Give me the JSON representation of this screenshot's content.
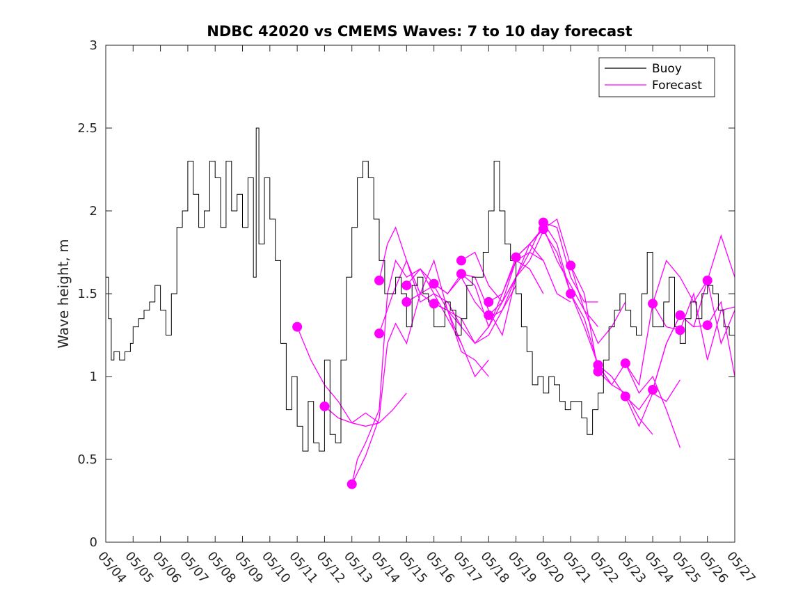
{
  "chart_data": {
    "type": "line",
    "title": "NDBC 42020 vs CMEMS Waves: 7 to 10 day forecast",
    "xlabel": "",
    "ylabel": "Wave height, m",
    "ylim": [
      0,
      3
    ],
    "xlim": [
      0,
      23
    ],
    "yticks": [
      "0",
      "0.5",
      "1",
      "1.5",
      "2",
      "2.5",
      "3"
    ],
    "xticks": [
      "05/04",
      "05/05",
      "05/06",
      "05/07",
      "05/08",
      "05/09",
      "05/10",
      "05/11",
      "05/12",
      "05/13",
      "05/14",
      "05/15",
      "05/16",
      "05/17",
      "05/18",
      "05/19",
      "05/20",
      "05/21",
      "05/22",
      "05/23",
      "05/24",
      "05/25",
      "05/26",
      "05/27"
    ],
    "grid": false,
    "legend": "top-right",
    "colors": {
      "buoy": "#000000",
      "forecast": "#ff00ff"
    },
    "series": [
      {
        "name": "Buoy",
        "x": [
          0,
          0.1,
          0.2,
          0.3,
          0.5,
          0.7,
          0.9,
          1.0,
          1.2,
          1.4,
          1.6,
          1.8,
          2.0,
          2.2,
          2.4,
          2.6,
          2.8,
          3.0,
          3.2,
          3.4,
          3.6,
          3.8,
          4.0,
          4.2,
          4.4,
          4.6,
          4.8,
          5.0,
          5.2,
          5.4,
          5.5,
          5.6,
          5.8,
          6.0,
          6.2,
          6.4,
          6.6,
          6.8,
          7.0,
          7.2,
          7.4,
          7.6,
          7.8,
          8.0,
          8.2,
          8.4,
          8.6,
          8.8,
          9.0,
          9.2,
          9.4,
          9.6,
          9.8,
          10.0,
          10.2,
          10.4,
          10.6,
          10.8,
          11.0,
          11.2,
          11.4,
          11.6,
          11.8,
          12.0,
          12.2,
          12.4,
          12.6,
          12.8,
          13.0,
          13.2,
          13.4,
          13.6,
          13.8,
          14.0,
          14.2,
          14.4,
          14.6,
          14.8,
          15.0,
          15.2,
          15.4,
          15.6,
          15.8,
          16.0,
          16.2,
          16.4,
          16.6,
          16.8,
          17.0,
          17.2,
          17.4,
          17.6,
          17.8,
          18.0,
          18.2,
          18.4,
          18.6,
          18.8,
          19.0,
          19.2,
          19.4,
          19.6,
          19.8,
          20.0,
          20.2,
          20.4,
          20.6,
          20.8,
          21.0,
          21.2,
          21.4,
          21.6,
          21.8,
          22.0,
          22.2,
          22.4,
          22.6,
          22.8,
          23.0
        ],
        "values": [
          1.6,
          1.35,
          1.1,
          1.15,
          1.1,
          1.15,
          1.2,
          1.3,
          1.35,
          1.4,
          1.45,
          1.55,
          1.4,
          1.25,
          1.5,
          1.9,
          2.0,
          2.3,
          2.1,
          1.9,
          2.0,
          2.3,
          2.2,
          1.9,
          2.3,
          2.0,
          2.1,
          1.9,
          2.2,
          1.6,
          2.5,
          1.8,
          2.2,
          1.95,
          1.7,
          1.2,
          0.8,
          1.0,
          0.7,
          0.55,
          0.85,
          0.6,
          0.55,
          1.1,
          0.65,
          0.6,
          1.1,
          1.6,
          1.9,
          2.2,
          2.3,
          2.2,
          1.95,
          1.7,
          1.5,
          1.5,
          1.6,
          1.5,
          1.3,
          1.55,
          1.6,
          1.5,
          1.45,
          1.3,
          1.3,
          1.45,
          1.4,
          1.25,
          1.35,
          1.55,
          1.6,
          1.6,
          1.75,
          2.0,
          2.3,
          2.0,
          1.8,
          1.7,
          1.5,
          1.3,
          1.15,
          0.95,
          1.0,
          0.9,
          1.0,
          0.95,
          0.85,
          0.8,
          0.85,
          0.85,
          0.75,
          0.65,
          0.8,
          0.9,
          1.1,
          1.3,
          1.4,
          1.5,
          1.4,
          1.3,
          1.25,
          1.5,
          1.75,
          1.3,
          1.3,
          1.45,
          1.6,
          1.3,
          1.2,
          1.35,
          1.45,
          1.35,
          1.5,
          1.55,
          1.5,
          1.4,
          1.3,
          1.25,
          1.25
        ]
      },
      {
        "name": "Forecast",
        "segments": [
          {
            "x": [
              7.0,
              7.5,
              8.0,
              8.5,
              9.0,
              9.5,
              10.0
            ],
            "values": [
              1.3,
              1.1,
              0.95,
              0.85,
              0.72,
              0.78,
              0.72
            ]
          },
          {
            "x": [
              8.0,
              8.5,
              9.0,
              9.5,
              10.0,
              10.5,
              11.0
            ],
            "values": [
              0.82,
              0.75,
              0.72,
              0.7,
              0.72,
              0.8,
              0.9
            ]
          },
          {
            "x": [
              9.0,
              9.2,
              9.5,
              10.0,
              10.3,
              10.6,
              11.0,
              11.5,
              12.0,
              12.5,
              13.0
            ],
            "values": [
              0.35,
              0.5,
              0.6,
              0.8,
              1.5,
              1.7,
              1.6,
              1.65,
              1.5,
              1.45,
              1.3
            ]
          },
          {
            "x": [
              9.0,
              9.5,
              10.0,
              10.3,
              10.6,
              11.0,
              11.5,
              12.0,
              12.5,
              13.0
            ],
            "values": [
              0.35,
              0.52,
              0.75,
              1.2,
              1.32,
              1.2,
              1.5,
              1.55,
              1.4,
              1.2
            ]
          },
          {
            "x": [
              10.0,
              10.3,
              10.6,
              11.0,
              11.5,
              12.0,
              12.5,
              13.0,
              13.5,
              14.0
            ],
            "values": [
              1.58,
              1.8,
              1.9,
              1.7,
              1.5,
              1.7,
              1.4,
              1.15,
              1.1,
              1.0
            ]
          },
          {
            "x": [
              10.0,
              10.5,
              11.0,
              11.5,
              12.0,
              12.5,
              13.0,
              13.5,
              14.0
            ],
            "values": [
              1.26,
              1.5,
              1.7,
              1.45,
              1.5,
              1.35,
              1.2,
              1.0,
              1.1
            ]
          },
          {
            "x": [
              11.0,
              11.5,
              12.0,
              12.5,
              13.0,
              13.5,
              14.0,
              14.5,
              15.0
            ],
            "values": [
              1.55,
              1.65,
              1.56,
              1.5,
              1.6,
              1.45,
              1.35,
              1.4,
              1.6
            ]
          },
          {
            "x": [
              11.0,
              11.5,
              12.0,
              12.5,
              13.0,
              13.5,
              14.0,
              14.5,
              15.0
            ],
            "values": [
              1.45,
              1.5,
              1.44,
              1.4,
              1.3,
              1.2,
              1.25,
              1.4,
              1.55
            ]
          },
          {
            "x": [
              12.0,
              12.5,
              13.0,
              13.5,
              14.0,
              14.5,
              15.0,
              15.5,
              16.0
            ],
            "values": [
              1.56,
              1.5,
              1.62,
              1.6,
              1.4,
              1.25,
              1.6,
              1.8,
              1.7
            ]
          },
          {
            "x": [
              12.0,
              12.5,
              13.0,
              13.5,
              14.0,
              14.5,
              15.0,
              15.5,
              16.0
            ],
            "values": [
              1.44,
              1.4,
              1.35,
              1.2,
              1.3,
              1.5,
              1.7,
              1.65,
              1.5
            ]
          },
          {
            "x": [
              13.0,
              13.5,
              14.0,
              14.5,
              15.0,
              15.5,
              16.0,
              16.5,
              17.0
            ],
            "values": [
              1.7,
              1.75,
              1.55,
              1.45,
              1.7,
              1.75,
              1.7,
              1.5,
              1.45
            ]
          },
          {
            "x": [
              13.0,
              13.5,
              14.0,
              14.5,
              15.0,
              15.5,
              16.0,
              16.5,
              17.0
            ],
            "values": [
              1.62,
              1.55,
              1.3,
              1.45,
              1.6,
              1.7,
              1.88,
              1.75,
              1.5
            ]
          },
          {
            "x": [
              14.0,
              14.5,
              15.0,
              15.5,
              16.0,
              16.5,
              17.0,
              17.5,
              18.0
            ],
            "values": [
              1.45,
              1.5,
              1.72,
              1.8,
              1.9,
              1.7,
              1.55,
              1.4,
              1.3
            ]
          },
          {
            "x": [
              14.0,
              14.5,
              15.0,
              15.5,
              16.0,
              16.5,
              17.0,
              17.5,
              18.0
            ],
            "values": [
              1.37,
              1.45,
              1.6,
              1.75,
              1.93,
              1.9,
              1.6,
              1.45,
              1.45
            ]
          },
          {
            "x": [
              15.0,
              15.5,
              16.0,
              16.5,
              17.0,
              17.5,
              18.0,
              18.5,
              19.0
            ],
            "values": [
              1.72,
              1.8,
              1.89,
              1.95,
              1.67,
              1.4,
              1.2,
              1.3,
              1.45
            ]
          },
          {
            "x": [
              16.0,
              16.5,
              17.0,
              17.5,
              18.0,
              18.5,
              19.0,
              19.5,
              20.0
            ],
            "values": [
              1.93,
              1.8,
              1.5,
              1.3,
              1.07,
              0.95,
              0.9,
              0.75,
              0.65
            ]
          },
          {
            "x": [
              17.0,
              17.5,
              18.0,
              18.5,
              19.0,
              19.5,
              20.0,
              20.5,
              21.0
            ],
            "values": [
              1.67,
              1.5,
              1.03,
              0.95,
              1.08,
              0.9,
              1.0,
              0.8,
              0.57
            ]
          },
          {
            "x": [
              17.0,
              17.5,
              18.0,
              18.5,
              19.0,
              19.5,
              20.0,
              20.5,
              21.0
            ],
            "values": [
              1.5,
              1.35,
              1.07,
              1.0,
              0.88,
              0.7,
              0.9,
              0.85,
              0.98
            ]
          },
          {
            "x": [
              19.0,
              19.5,
              20.0,
              20.5,
              21.0,
              21.5,
              22.0,
              22.5,
              23.0
            ],
            "values": [
              1.08,
              0.95,
              1.44,
              1.7,
              1.6,
              1.45,
              1.58,
              1.85,
              1.6
            ]
          },
          {
            "x": [
              19.0,
              19.5,
              20.0,
              20.5,
              21.0,
              21.5,
              22.0,
              22.5,
              23.0
            ],
            "values": [
              0.88,
              0.8,
              0.92,
              1.2,
              1.37,
              1.3,
              1.31,
              1.45,
              1.0
            ]
          },
          {
            "x": [
              20.0,
              20.5,
              21.0,
              21.5,
              22.0,
              22.5,
              23.0
            ],
            "values": [
              1.44,
              1.3,
              1.28,
              1.5,
              1.1,
              1.4,
              1.42
            ]
          },
          {
            "x": [
              20.0,
              20.5,
              21.0,
              21.5,
              22.0,
              22.5,
              23.0
            ],
            "values": [
              0.92,
              1.2,
              1.37,
              1.3,
              1.58,
              1.2,
              1.4
            ]
          }
        ],
        "markers": {
          "x": [
            7.0,
            8.0,
            9.0,
            10.0,
            10.0,
            11.0,
            11.0,
            12.0,
            12.0,
            13.0,
            13.0,
            14.0,
            14.0,
            15.0,
            16.0,
            16.0,
            17.0,
            17.0,
            18.0,
            18.0,
            19.0,
            19.0,
            20.0,
            20.0,
            21.0,
            21.0,
            22.0,
            22.0
          ],
          "values": [
            1.3,
            0.82,
            0.35,
            1.58,
            1.26,
            1.55,
            1.45,
            1.56,
            1.44,
            1.7,
            1.62,
            1.45,
            1.37,
            1.72,
            1.93,
            1.89,
            1.67,
            1.5,
            1.07,
            1.03,
            1.08,
            0.88,
            1.44,
            0.92,
            1.37,
            1.28,
            1.58,
            1.31
          ]
        }
      }
    ]
  }
}
